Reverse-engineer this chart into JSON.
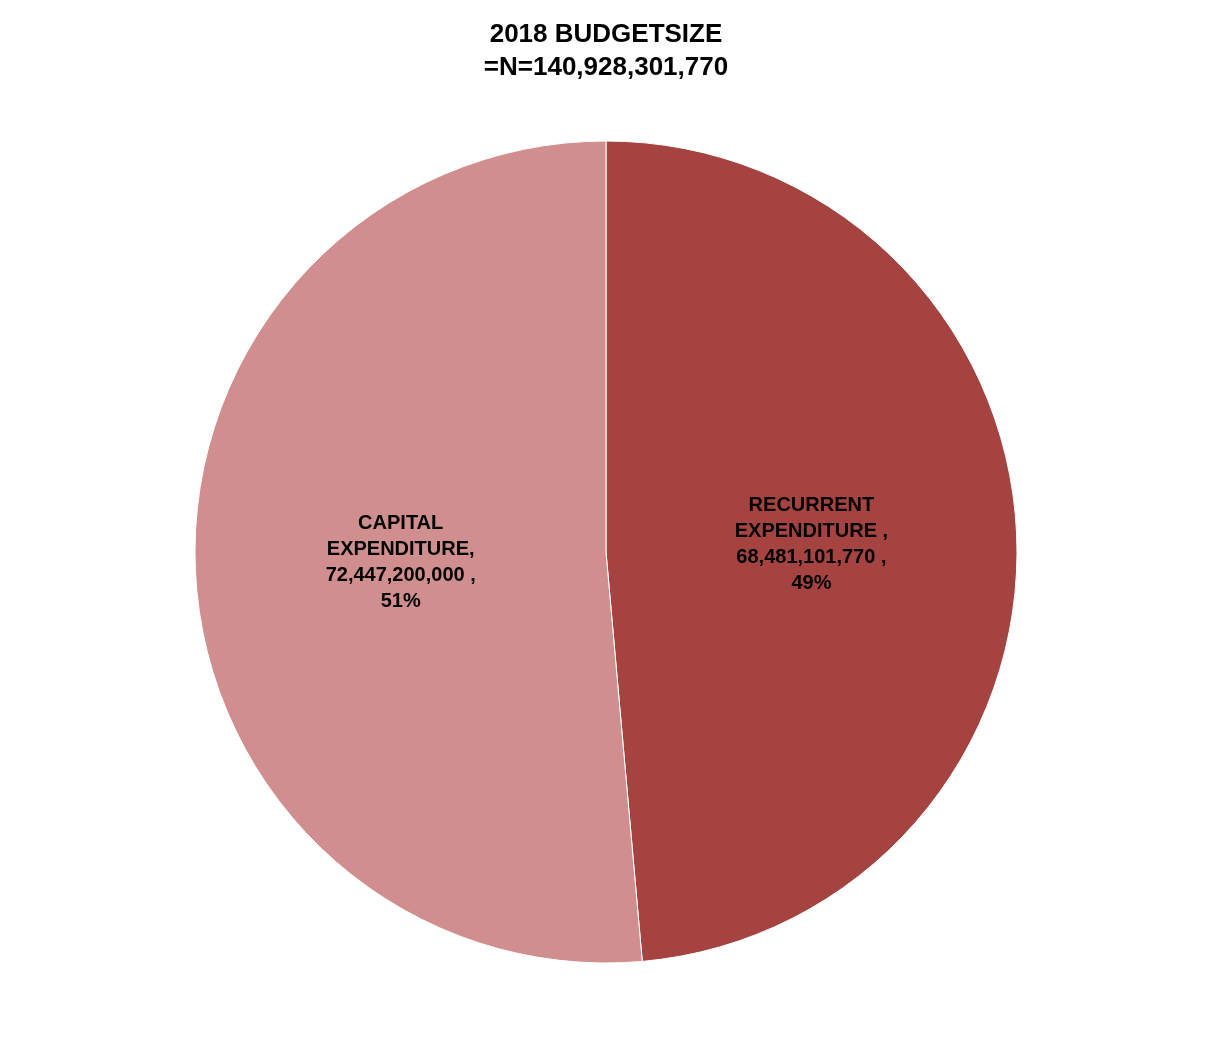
{
  "chart_data": {
    "type": "pie",
    "title": "2018 BUDGETSIZE\n=N=140,928,301,770",
    "categories": [
      "RECURRENT\nEXPENDITURE",
      "CAPITAL\nEXPENDITURE"
    ],
    "values": [
      68481101770,
      72447200000
    ],
    "value_labels": [
      " ,\n68,481,101,770 ,\n49%",
      ",\n72,447,200,000 ,\n51%"
    ],
    "colors": [
      "#a54341",
      "#d08f8e"
    ],
    "legend": false
  }
}
